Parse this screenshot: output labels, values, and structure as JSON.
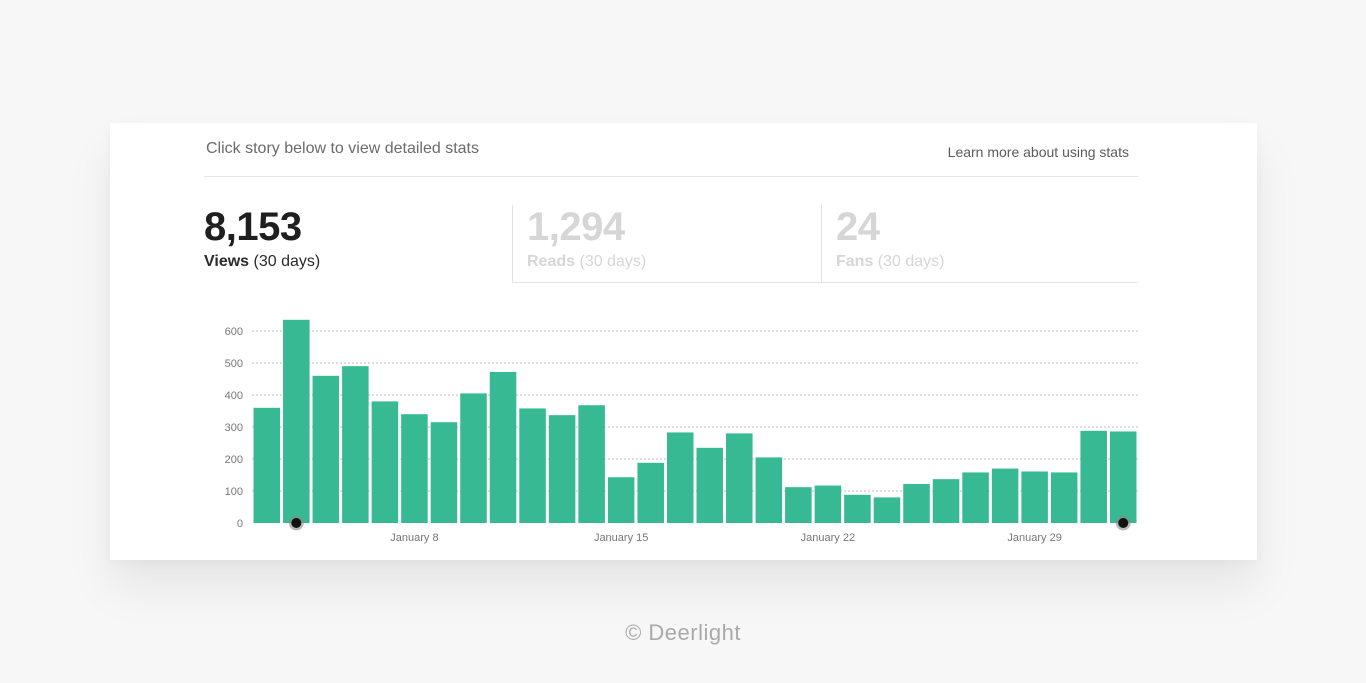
{
  "header": {
    "instruction": "Click story below to view detailed stats",
    "learn_more": "Learn more about using stats"
  },
  "stats": {
    "views": {
      "value": "8,153",
      "label": "Views",
      "period": "(30 days)"
    },
    "reads": {
      "value": "1,294",
      "label": "Reads",
      "period": "(30 days)"
    },
    "fans": {
      "value": "24",
      "label": "Fans",
      "period": "(30 days)"
    }
  },
  "colors": {
    "bar": "#37b994",
    "grid": "#bdbdbd",
    "tick_text": "#777777",
    "marker": "#111111"
  },
  "chart_data": {
    "type": "bar",
    "title": "",
    "xlabel": "",
    "ylabel": "",
    "ylim": [
      0,
      600
    ],
    "yticks": [
      0,
      100,
      200,
      300,
      400,
      500,
      600
    ],
    "grid": true,
    "x_tick_labels": [
      {
        "day_index": 5,
        "label": "January 8"
      },
      {
        "day_index": 12,
        "label": "January 15"
      },
      {
        "day_index": 19,
        "label": "January 22"
      },
      {
        "day_index": 26,
        "label": "January 29"
      }
    ],
    "markers_at_day_index": [
      1,
      29
    ],
    "values": [
      360,
      635,
      460,
      490,
      380,
      340,
      315,
      405,
      472,
      358,
      337,
      368,
      143,
      188,
      283,
      235,
      280,
      205,
      112,
      117,
      88,
      80,
      122,
      137,
      158,
      170,
      161,
      158,
      288,
      286
    ]
  },
  "footer": {
    "copyright": "© Deerlight"
  }
}
